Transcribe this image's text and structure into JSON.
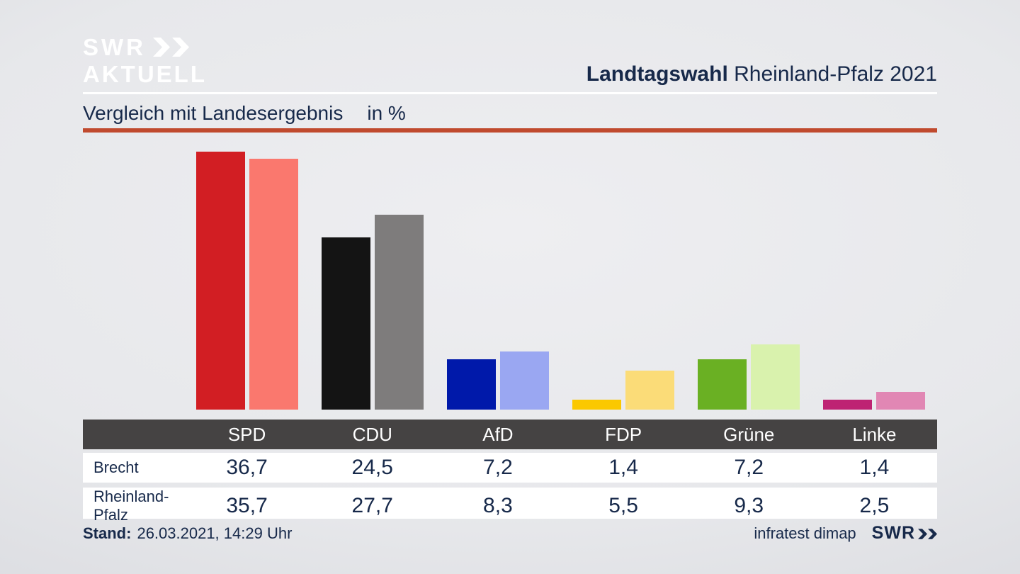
{
  "header": {
    "logo_line1": "SWR",
    "logo_line2": "AKTUELL",
    "title_bold": "Landtagswahl",
    "title_rest": "Rheinland-Pfalz 2021"
  },
  "subtitle": {
    "text": "Vergleich mit Landesergebnis",
    "unit": "in %"
  },
  "chart_data": {
    "type": "bar",
    "categories": [
      "SPD",
      "CDU",
      "AfD",
      "FDP",
      "Grüne",
      "Linke"
    ],
    "category_slugs": [
      "spd",
      "cdu",
      "afd",
      "fdp",
      "gruene",
      "linke"
    ],
    "series": [
      {
        "name": "Brecht",
        "values": [
          36.7,
          24.5,
          7.2,
          1.4,
          7.2,
          1.4
        ]
      },
      {
        "name": "Rheinland-Pfalz",
        "values": [
          35.7,
          27.7,
          8.3,
          5.5,
          9.3,
          2.5
        ]
      }
    ],
    "colors": [
      [
        "#d21e23",
        "#fa786e"
      ],
      [
        "#141414",
        "#7e7c7c"
      ],
      [
        "#0019aa",
        "#9aa7f2"
      ],
      [
        "#fbc800",
        "#fbdc78"
      ],
      [
        "#6ab023",
        "#d9f2ad"
      ],
      [
        "#be2373",
        "#e187b4"
      ]
    ],
    "title": "Vergleich mit Landesergebnis",
    "xlabel": "",
    "ylabel": "in %",
    "ylim": [
      0,
      36.9
    ],
    "grid": false,
    "legend_position": "table-below"
  },
  "table": {
    "columns": [
      "SPD",
      "CDU",
      "AfD",
      "FDP",
      "Grüne",
      "Linke"
    ],
    "column_slugs": [
      "spd",
      "cdu",
      "afd",
      "fdp",
      "gruene",
      "linke"
    ],
    "rows": [
      {
        "label": "Brecht",
        "slug": "brecht",
        "values": [
          "36,7",
          "24,5",
          "7,2",
          "1,4",
          "7,2",
          "1,4"
        ]
      },
      {
        "label": "Rheinland-Pfalz",
        "slug": "rheinland-pfalz",
        "values": [
          "35,7",
          "27,7",
          "8,3",
          "5,5",
          "9,3",
          "2,5"
        ]
      }
    ]
  },
  "footer": {
    "stand_label": "Stand:",
    "stand_value": "26.03.2021, 14:29 Uhr",
    "source": "infratest dimap",
    "network": "SWR"
  },
  "colors": {
    "navy_text": "#17294a",
    "accent_red_line": "#c04a2e",
    "table_header_bg": "#454343",
    "row_bg": "#ffffff",
    "background_edge": "#cfd0d6",
    "background_center": "#eeeef1"
  }
}
